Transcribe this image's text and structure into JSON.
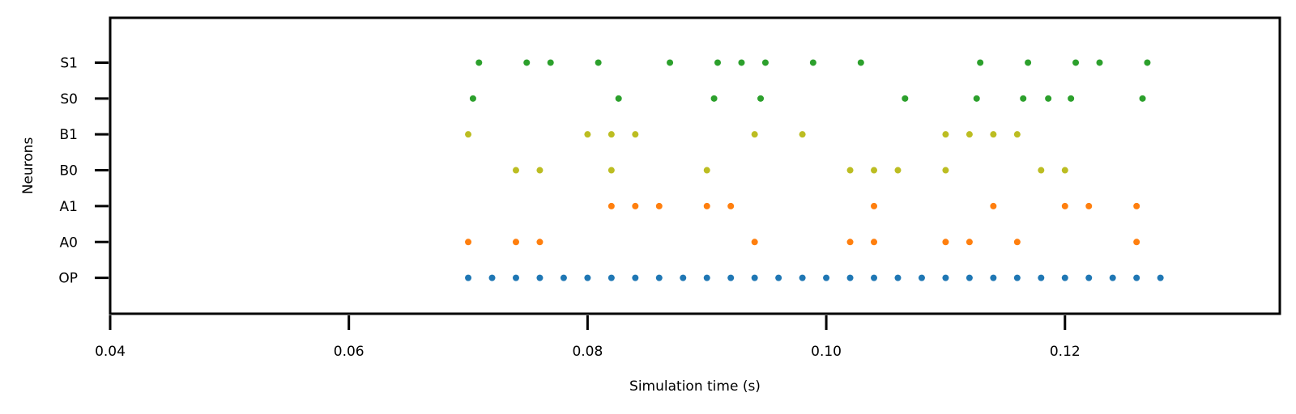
{
  "chart_data": {
    "type": "scatter",
    "title": "",
    "xlabel": "Simulation time (s)",
    "ylabel": "Neurons",
    "xlim": [
      0.04,
      0.138
    ],
    "x_ticks": [
      0.04,
      0.06,
      0.08,
      0.1,
      0.12
    ],
    "x_tick_labels": [
      "0.04",
      "0.06",
      "0.08",
      "0.10",
      "0.12"
    ],
    "categories": [
      "OP",
      "A0",
      "A1",
      "B0",
      "B1",
      "S0",
      "S1"
    ],
    "grid": false,
    "series": [
      {
        "category": "OP",
        "color": "#1f77b4",
        "x": [
          0.07,
          0.072,
          0.074,
          0.076,
          0.078,
          0.08,
          0.082,
          0.084,
          0.086,
          0.088,
          0.09,
          0.092,
          0.094,
          0.096,
          0.098,
          0.1,
          0.102,
          0.104,
          0.106,
          0.108,
          0.11,
          0.112,
          0.114,
          0.116,
          0.118,
          0.12,
          0.122,
          0.124,
          0.126,
          0.128
        ]
      },
      {
        "category": "A0",
        "color": "#ff7f0e",
        "x": [
          0.07,
          0.074,
          0.076,
          0.094,
          0.102,
          0.104,
          0.11,
          0.112,
          0.116,
          0.126
        ]
      },
      {
        "category": "A1",
        "color": "#ff7f0e",
        "x": [
          0.082,
          0.084,
          0.086,
          0.09,
          0.092,
          0.104,
          0.114,
          0.12,
          0.122,
          0.126
        ]
      },
      {
        "category": "B0",
        "color": "#bcbd22",
        "x": [
          0.074,
          0.076,
          0.082,
          0.09,
          0.102,
          0.104,
          0.106,
          0.11,
          0.118,
          0.12
        ]
      },
      {
        "category": "B1",
        "color": "#bcbd22",
        "x": [
          0.07,
          0.08,
          0.082,
          0.084,
          0.094,
          0.098,
          0.11,
          0.112,
          0.114,
          0.116
        ]
      },
      {
        "category": "S0",
        "color": "#2ca02c",
        "x": [
          0.0704,
          0.0826,
          0.0906,
          0.0945,
          0.1066,
          0.1126,
          0.1165,
          0.1186,
          0.1205,
          0.1265
        ]
      },
      {
        "category": "S1",
        "color": "#2ca02c",
        "x": [
          0.0709,
          0.0749,
          0.0769,
          0.0809,
          0.0869,
          0.0909,
          0.0929,
          0.0949,
          0.0989,
          0.1029,
          0.1129,
          0.1169,
          0.1209,
          0.1229,
          0.1269
        ]
      }
    ]
  }
}
